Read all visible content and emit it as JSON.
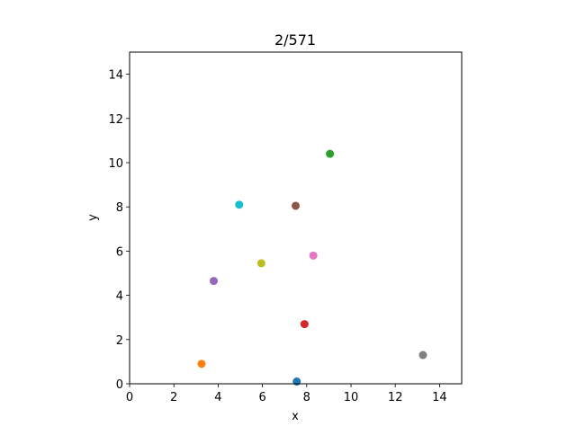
{
  "chart_data": {
    "type": "scatter",
    "title": "2/571",
    "xlabel": "x",
    "ylabel": "y",
    "xlim": [
      0,
      15
    ],
    "ylim": [
      0,
      15
    ],
    "xticks": [
      0,
      2,
      4,
      6,
      8,
      10,
      12,
      14
    ],
    "yticks": [
      0,
      2,
      4,
      6,
      8,
      10,
      12,
      14
    ],
    "grid": false,
    "points": [
      {
        "x": 7.55,
        "y": 0.1,
        "color": "#1f77b4"
      },
      {
        "x": 3.25,
        "y": 0.9,
        "color": "#ff7f0e"
      },
      {
        "x": 9.05,
        "y": 10.4,
        "color": "#2ca02c"
      },
      {
        "x": 7.9,
        "y": 2.7,
        "color": "#d62728"
      },
      {
        "x": 3.8,
        "y": 4.65,
        "color": "#9467bd"
      },
      {
        "x": 7.5,
        "y": 8.05,
        "color": "#8c564b"
      },
      {
        "x": 8.3,
        "y": 5.8,
        "color": "#e377c2"
      },
      {
        "x": 13.25,
        "y": 1.3,
        "color": "#7f7f7f"
      },
      {
        "x": 5.95,
        "y": 5.45,
        "color": "#bcbd22"
      },
      {
        "x": 4.95,
        "y": 8.1,
        "color": "#17becf"
      }
    ]
  }
}
